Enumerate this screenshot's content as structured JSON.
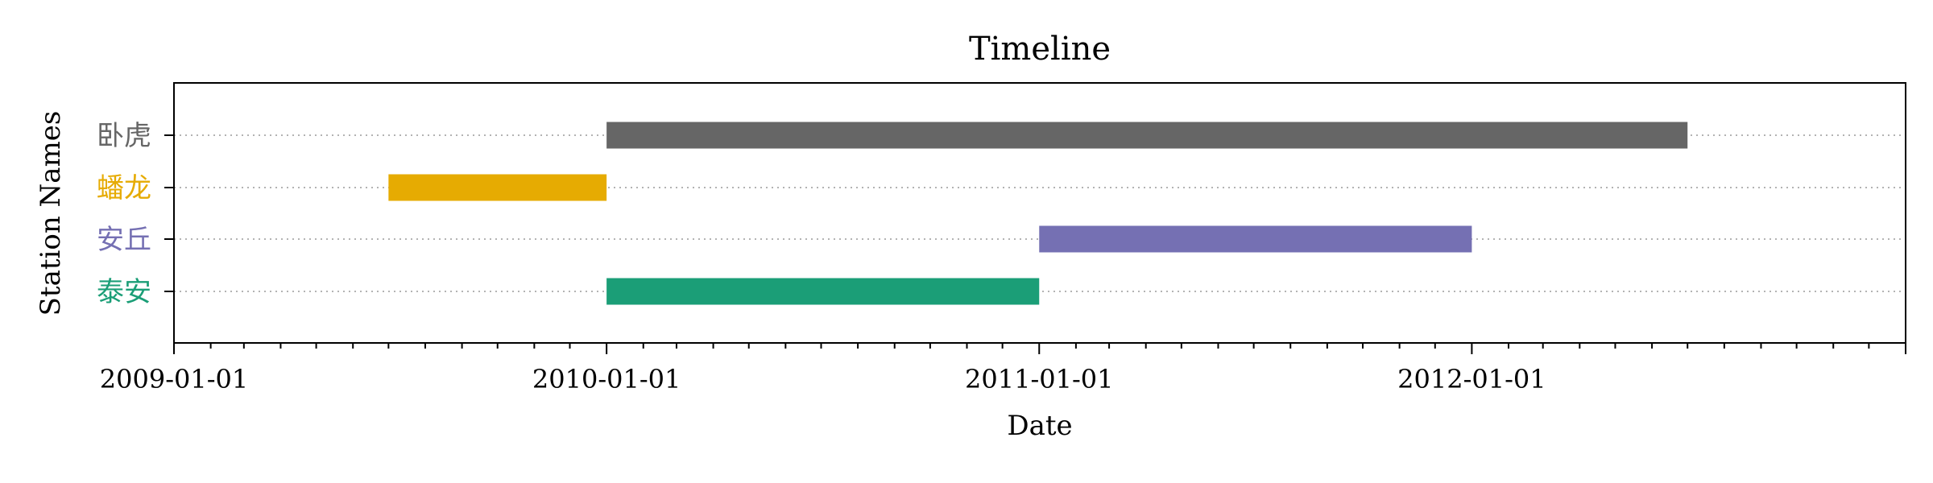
{
  "chart_data": {
    "type": "bar",
    "orientation": "horizontal-timeline",
    "title": "Timeline",
    "xlabel": "Date",
    "ylabel": "Station Names",
    "xlim": [
      "2009-01-01",
      "2013-01-01"
    ],
    "x_ticks": [
      "2009-01-01",
      "2010-01-01",
      "2011-01-01",
      "2012-01-01"
    ],
    "grid": "horizontal dotted lines at each category",
    "categories": [
      "卧虎",
      "蟠龙",
      "安丘",
      "泰安"
    ],
    "category_colors": [
      "#666666",
      "#E6AB02",
      "#7570B3",
      "#1B9E77"
    ],
    "bars": [
      {
        "category": "卧虎",
        "start": "2010-01-01",
        "end": "2012-07-01"
      },
      {
        "category": "蟠龙",
        "start": "2009-07-01",
        "end": "2010-01-01"
      },
      {
        "category": "安丘",
        "start": "2011-01-01",
        "end": "2012-01-01"
      },
      {
        "category": "泰安",
        "start": "2010-01-01",
        "end": "2011-01-01"
      }
    ]
  }
}
